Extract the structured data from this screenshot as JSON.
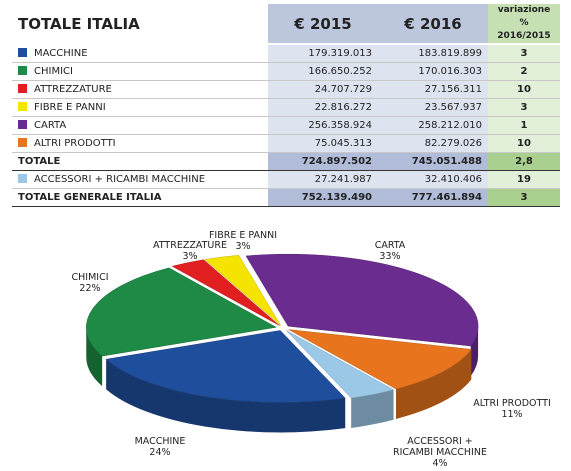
{
  "table": {
    "header": [
      "TOTALE ITALIA",
      "€ 2015",
      "€ 2016",
      [
        "variazione %",
        "2016/2015"
      ]
    ],
    "rows": [
      {
        "cells": [
          "MACCHINE",
          "179.319.013",
          "183.819.899",
          "3"
        ],
        "color": "#1f4e9c"
      },
      {
        "cells": [
          "CHIMICI",
          "166.650.252",
          "170.016.303",
          "2"
        ],
        "color": "#1e8a45"
      },
      {
        "cells": [
          "ATTREZZATURE",
          "24.707.729",
          "27.156.311",
          "10"
        ],
        "color": "#e02020"
      },
      {
        "cells": [
          "FIBRE E PANNI",
          "22.816.272",
          "23.567.937",
          "3"
        ],
        "color": "#f5e400"
      },
      {
        "cells": [
          "CARTA",
          "256.358.924",
          "258.212.010",
          "1"
        ],
        "color": "#6a2d8f"
      },
      {
        "cells": [
          "ALTRI PRODOTTI",
          "75.045.313",
          "82.279.026",
          "10"
        ],
        "color": "#e8741e"
      },
      {
        "cells": [
          "TOTALE",
          "724.897.502",
          "745.051.488",
          "2,8"
        ],
        "total": true
      },
      {
        "cells": [
          "ACCESSORI + RICAMBI MACCHINE",
          "27.241.987",
          "32.410.406",
          "19"
        ],
        "color": "#9cc8e8"
      },
      {
        "cells": [
          "TOTALE GENERALE ITALIA",
          "752.139.490",
          "777.461.894",
          "3"
        ],
        "total": true
      }
    ]
  },
  "chart_data": {
    "type": "pie",
    "categories": [
      "MACCHINE",
      "CHIMICI",
      "ATTREZZATURE",
      "FIBRE E PANNI",
      "CARTA",
      "ALTRI PRODOTTI",
      "ACCESSORI + RICAMBI MACCHINE"
    ],
    "values": [
      24,
      22,
      3,
      3,
      33,
      11,
      4
    ],
    "value_labels": [
      "24%",
      "22%",
      "3%",
      "3%",
      "33%",
      "11%",
      "4%"
    ],
    "colors": [
      "#1f4e9c",
      "#1e8a45",
      "#e02020",
      "#f5e400",
      "#6a2d8f",
      "#e8741e",
      "#9cc8e8"
    ]
  }
}
